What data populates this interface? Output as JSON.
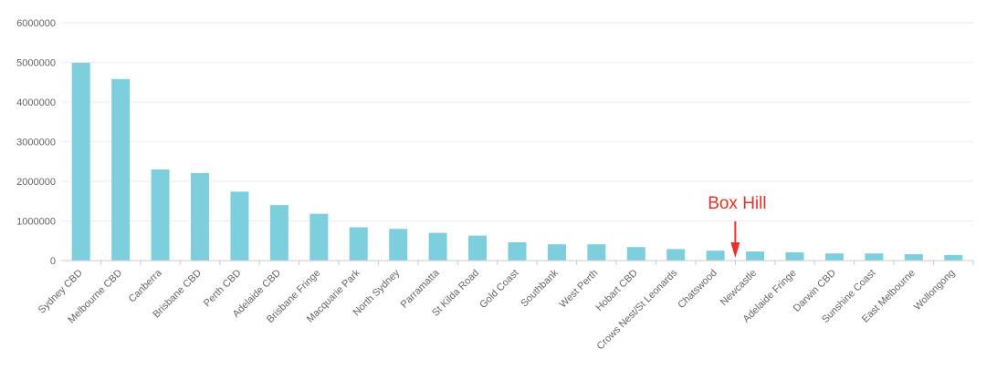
{
  "chart_data": {
    "type": "bar",
    "categories": [
      "Sydney CBD",
      "Melbourne CBD",
      "Canberra",
      "Brisbane CBD",
      "Perth CBD",
      "Adelaide CBD",
      "Brisbane Fringe",
      "Macquarie Park",
      "North Sydney",
      "Parramatta",
      "St Kilda Road",
      "Gold Coast",
      "Southbank",
      "West Perth",
      "Hobart CBD",
      "Crows Nest/St Leonards",
      "Chatswood",
      "Newcastle",
      "Adelaide Fringe",
      "Darwin CBD",
      "Sunshine Coast",
      "East Melbourne",
      "Wollongong"
    ],
    "values": [
      4990000,
      4580000,
      2300000,
      2210000,
      1740000,
      1400000,
      1180000,
      840000,
      800000,
      700000,
      630000,
      460000,
      410000,
      410000,
      340000,
      290000,
      250000,
      230000,
      210000,
      180000,
      180000,
      160000,
      140000
    ],
    "ylim": [
      0,
      6000000
    ],
    "yticks": [
      "0",
      "1000000",
      "2000000",
      "3000000",
      "4000000",
      "5000000",
      "6000000"
    ],
    "title": "",
    "xlabel": "",
    "ylabel": "",
    "grid": true,
    "bar_color": "#7ecfdd",
    "annotation": {
      "text": "Box Hill",
      "color": "#e8312a",
      "after_category": "Chatswood"
    }
  }
}
